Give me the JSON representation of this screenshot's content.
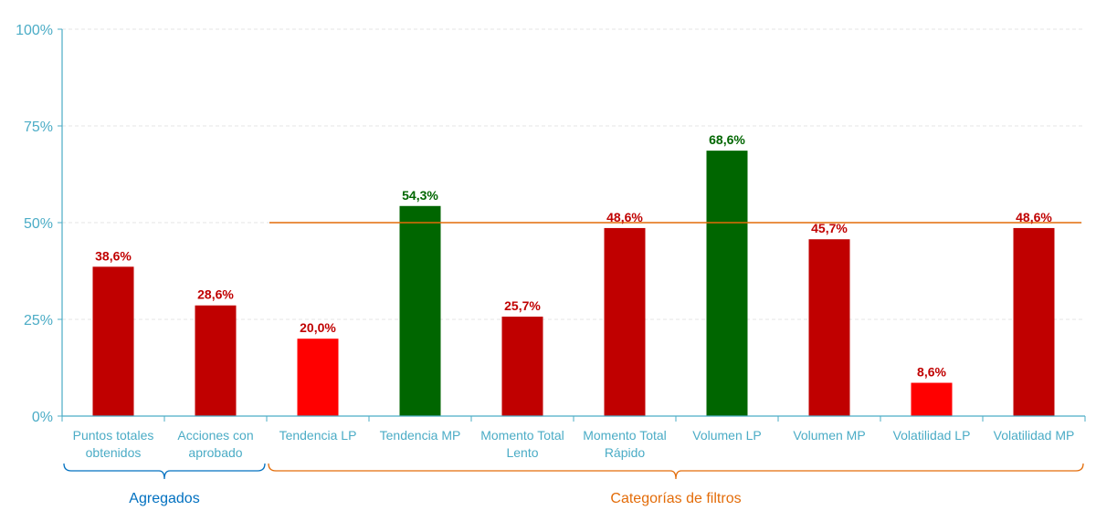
{
  "chart_data": {
    "type": "bar",
    "categories": [
      [
        "Puntos totales",
        "obtenidos"
      ],
      [
        "Acciones con",
        "aprobado"
      ],
      [
        "Tendencia LP"
      ],
      [
        "Tendencia MP"
      ],
      [
        "Momento Total",
        "Lento"
      ],
      [
        "Momento Total",
        "Rápido"
      ],
      [
        "Volumen LP"
      ],
      [
        "Volumen MP"
      ],
      [
        "Volatilidad LP"
      ],
      [
        "Volatilidad MP"
      ]
    ],
    "values": [
      38.6,
      28.6,
      20.0,
      54.3,
      25.7,
      48.6,
      68.6,
      45.7,
      8.6,
      48.6
    ],
    "data_labels": [
      "38,6%",
      "28,6%",
      "20,0%",
      "54,3%",
      "25,7%",
      "48,6%",
      "68,6%",
      "45,7%",
      "8,6%",
      "48,6%"
    ],
    "bar_colors": [
      "#c00000",
      "#c00000",
      "#ff0000",
      "#006600",
      "#c00000",
      "#c00000",
      "#006600",
      "#c00000",
      "#ff0000",
      "#c00000"
    ],
    "label_colors": [
      "#c00000",
      "#c00000",
      "#c00000",
      "#006600",
      "#c00000",
      "#c00000",
      "#006600",
      "#c00000",
      "#c00000",
      "#c00000"
    ],
    "ylim": [
      0,
      100
    ],
    "yticks": [
      0,
      25,
      50,
      75,
      100
    ],
    "ytick_labels": [
      "0%",
      "25%",
      "50%",
      "75%",
      "100%"
    ],
    "reference_line": {
      "value": 50,
      "from_category": 2,
      "color": "#e36c09"
    },
    "grid": true,
    "groups": [
      {
        "label": "Agregados",
        "start": 0,
        "end": 1,
        "color": "#0070c0"
      },
      {
        "label": "Categorías de filtros",
        "start": 2,
        "end": 9,
        "color": "#e36c09"
      }
    ],
    "colors": {
      "axis": "#4bacc6",
      "grid": "#e6e6e6"
    }
  }
}
